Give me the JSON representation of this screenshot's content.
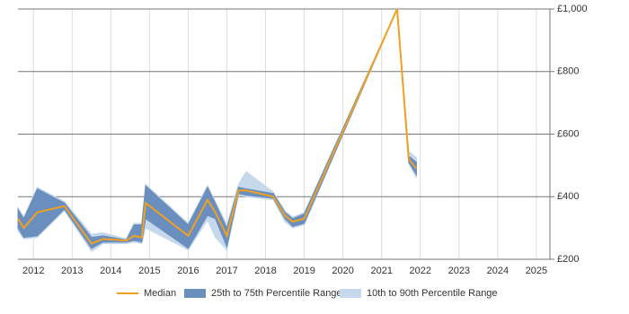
{
  "chart_data": {
    "type": "line-range",
    "x": [
      2011.6,
      2011.75,
      2012.1,
      2012.8,
      2013.5,
      2013.8,
      2014.4,
      2014.6,
      2014.8,
      2014.9,
      2016.0,
      2016.5,
      2016.7,
      2017.0,
      2017.3,
      2017.5,
      2018.2,
      2018.5,
      2018.7,
      2019.0,
      2021.4,
      2021.7,
      2021.9
    ],
    "series": [
      {
        "name": "Median",
        "color": "#f0a020",
        "values": [
          330,
          300,
          350,
          370,
          250,
          265,
          260,
          275,
          270,
          380,
          275,
          390,
          350,
          275,
          420,
          420,
          400,
          340,
          320,
          330,
          1000,
          520,
          490
        ]
      }
    ],
    "bands": [
      {
        "name": "10th to 90th Percentile Range",
        "color": "#c6d9ec",
        "low": [
          290,
          265,
          270,
          355,
          225,
          250,
          250,
          255,
          250,
          300,
          230,
          325,
          270,
          230,
          405,
          400,
          390,
          320,
          300,
          310,
          1000,
          505,
          460
        ],
        "high": [
          365,
          335,
          430,
          385,
          280,
          285,
          265,
          315,
          315,
          440,
          315,
          435,
          385,
          310,
          440,
          480,
          415,
          355,
          335,
          350,
          1000,
          545,
          525
        ]
      },
      {
        "name": "25th to 75th Percentile Range",
        "color": "#6a8fbf",
        "low": [
          300,
          270,
          275,
          360,
          235,
          255,
          255,
          260,
          255,
          330,
          235,
          340,
          330,
          240,
          410,
          405,
          395,
          330,
          305,
          315,
          1000,
          510,
          470
        ],
        "high": [
          360,
          330,
          425,
          380,
          270,
          275,
          262,
          310,
          310,
          435,
          310,
          430,
          380,
          300,
          430,
          425,
          410,
          350,
          330,
          345,
          1000,
          530,
          510
        ]
      }
    ],
    "legend_order": [
      "Median",
      "25th to 75th Percentile Range",
      "10th to 90th Percentile Range"
    ],
    "xlim": [
      2011.6,
      2025.35
    ],
    "xticks": [
      2012,
      2013,
      2014,
      2015,
      2016,
      2017,
      2018,
      2019,
      2020,
      2021,
      2022,
      2023,
      2024,
      2025
    ],
    "ylim": [
      200,
      1000
    ],
    "yticks": [
      {
        "value": 200,
        "label": "£200"
      },
      {
        "value": 400,
        "label": "£400"
      },
      {
        "value": 600,
        "label": "£600"
      },
      {
        "value": 800,
        "label": "£800"
      },
      {
        "value": 1000,
        "label": "£1,000"
      }
    ],
    "grid": true
  }
}
